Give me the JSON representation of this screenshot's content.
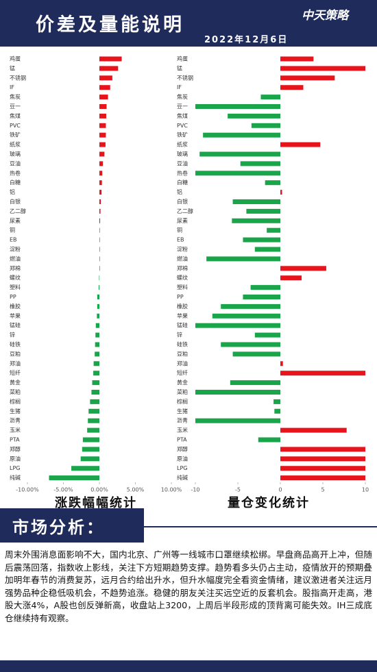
{
  "header": {
    "title": "价差及量能说明",
    "date": "2022年12月6日",
    "logo": "中天策略"
  },
  "chart_data": [
    {
      "type": "hbar",
      "title": "涨跌幅幅统计",
      "categories": [
        "鸡蛋",
        "锰",
        "不锈钢",
        "IF",
        "焦炭",
        "豆一",
        "焦煤",
        "PVC",
        "铁矿",
        "纸浆",
        "玻璃",
        "豆油",
        "热卷",
        "白糖",
        "铝",
        "白银",
        "乙二醇",
        "尿素",
        "铜",
        "EB",
        "淀粉",
        "燃油",
        "郑棉",
        "螺纹",
        "塑料",
        "PP",
        "橡胶",
        "苹果",
        "锰硅",
        "锌",
        "硅铁",
        "豆粕",
        "郑油",
        "短纤",
        "黄金",
        "菜粕",
        "棕榈",
        "生猪",
        "沥青",
        "玉米",
        "PTA",
        "郑醇",
        "原油",
        "LPG",
        "纯碱"
      ],
      "values": [
        3.1,
        2.6,
        1.8,
        1.5,
        1.2,
        1.0,
        0.95,
        0.9,
        0.9,
        0.85,
        0.7,
        0.5,
        0.4,
        0.35,
        0.3,
        0.2,
        0.15,
        0.1,
        0.05,
        0.03,
        0.02,
        0.01,
        0,
        -0.05,
        -0.1,
        -0.3,
        -0.3,
        -0.35,
        -0.5,
        -0.55,
        -0.6,
        -0.65,
        -0.8,
        -0.85,
        -1.0,
        -1.1,
        -1.3,
        -1.5,
        -1.6,
        -1.7,
        -2.3,
        -2.4,
        -2.6,
        -3.9,
        -7.0
      ],
      "xlim": [
        -10,
        10
      ],
      "xticks": [
        {
          "value": -10,
          "label": "-10.00%"
        },
        {
          "value": -5,
          "label": "-5.00%"
        },
        {
          "value": 0,
          "label": "0.00%"
        },
        {
          "value": 5,
          "label": "5.00%"
        },
        {
          "value": 10,
          "label": "10.00%"
        }
      ],
      "positive_color": "#e8141c",
      "negative_color": "#1aa54a"
    },
    {
      "type": "hbar",
      "title": "量仓变化统计",
      "categories": [
        "鸡蛋",
        "锰",
        "不锈钢",
        "IF",
        "焦炭",
        "豆一",
        "焦煤",
        "PVC",
        "铁矿",
        "纸浆",
        "玻璃",
        "豆油",
        "热卷",
        "白糖",
        "铝",
        "白银",
        "乙二醇",
        "尿素",
        "铜",
        "EB",
        "淀粉",
        "燃油",
        "郑棉",
        "螺纹",
        "塑料",
        "PP",
        "橡胶",
        "苹果",
        "锰硅",
        "锌",
        "硅铁",
        "豆粕",
        "郑油",
        "短纤",
        "黄金",
        "菜粕",
        "棕榈",
        "生猪",
        "沥青",
        "玉米",
        "PTA",
        "郑醇",
        "原油",
        "LPG",
        "纯碱"
      ],
      "values": [
        3.9,
        10,
        6.4,
        2.7,
        -2.3,
        -10,
        -6.2,
        -3.4,
        -9.1,
        4.7,
        -9.5,
        -4.7,
        -10,
        -1.8,
        0.2,
        -5.6,
        -4.0,
        -5.7,
        -1.6,
        -4.4,
        -3.0,
        -8.7,
        5.4,
        2.5,
        -3.5,
        -4.4,
        -7.0,
        -8.0,
        -10,
        -3.0,
        -7.0,
        -5.6,
        0.3,
        10,
        -5.9,
        -10,
        -0.8,
        -0.7,
        -10,
        7.8,
        -2.6,
        10,
        10,
        10,
        10
      ],
      "xlim": [
        -10,
        10
      ],
      "xticks": [
        -10,
        -5,
        0,
        5,
        10
      ],
      "positive_color": "#e8141c",
      "negative_color": "#1aa54a"
    }
  ],
  "analysis": {
    "heading": "市场分析：",
    "text": "周末外围消息面影响不大，国内北京、广州等一线城市口罩继续松绑。早盘商品高开上冲，但随后震荡回落，指数收上影线，关注下方短期趋势支撑。趋势看多头仍占主动，疫情放开的预期叠加明年春节的消费复苏，远月合约给出升水，但升水幅度完全看资金情绪，建议激进者关注远月强势品种企稳低吸机会，不趋势追涨。稳健的朋友关注买远空近的反套机会。股指高开走高，港股大涨4%，A股也创反弹新高，收盘站上3200，上周后半段形成的顶背离可能失效。IH三成底仓继续持有观察。"
  }
}
